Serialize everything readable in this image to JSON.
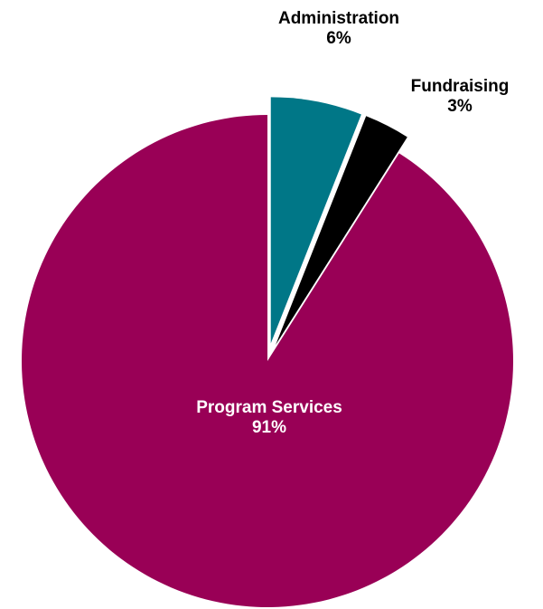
{
  "chart_data": {
    "type": "pie",
    "title": "",
    "slices": [
      {
        "label": "Administration",
        "percent_text": "6%",
        "value": 6,
        "color": "#007787",
        "label_color": "#000000"
      },
      {
        "label": "Fundraising",
        "percent_text": "3%",
        "value": 3,
        "color": "#000000",
        "label_color": "#000000"
      },
      {
        "label": "Program Services",
        "percent_text": "91%",
        "value": 91,
        "color": "#990056",
        "label_color": "#ffffff"
      }
    ],
    "start_angle_deg": 0,
    "direction": "clockwise",
    "exploded": [
      "Administration",
      "Fundraising"
    ]
  }
}
